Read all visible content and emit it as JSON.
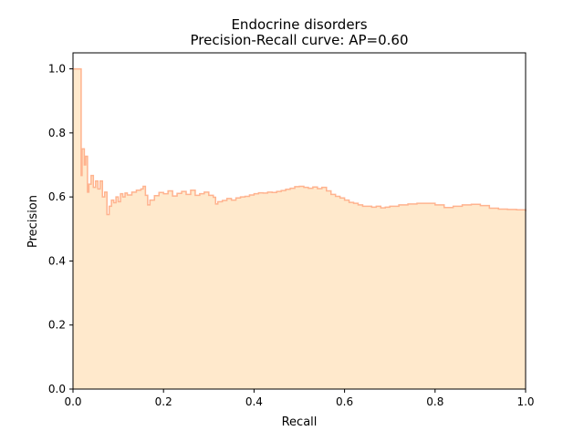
{
  "chart_data": {
    "type": "area",
    "title_line1": "Endocrine disorders",
    "title_line2": "Precision-Recall curve: AP=0.60",
    "xlabel": "Recall",
    "ylabel": "Precision",
    "xlim": [
      0,
      1
    ],
    "ylim": [
      0,
      1.05
    ],
    "grid": false,
    "xticks": [
      {
        "value": 0.0,
        "label": "0.0"
      },
      {
        "value": 0.2,
        "label": "0.2"
      },
      {
        "value": 0.4,
        "label": "0.4"
      },
      {
        "value": 0.6,
        "label": "0.6"
      },
      {
        "value": 0.8,
        "label": "0.8"
      },
      {
        "value": 1.0,
        "label": "1.0"
      }
    ],
    "yticks": [
      {
        "value": 0.0,
        "label": "0.0"
      },
      {
        "value": 0.2,
        "label": "0.2"
      },
      {
        "value": 0.4,
        "label": "0.4"
      },
      {
        "value": 0.6,
        "label": "0.6"
      },
      {
        "value": 0.8,
        "label": "0.8"
      },
      {
        "value": 1.0,
        "label": "1.0"
      }
    ],
    "fill_color": "#ffe9cc",
    "line_color": "#ffb38f",
    "series": [
      {
        "name": "Precision-Recall",
        "step": "post",
        "recall": [
          0.0,
          0.018,
          0.02,
          0.025,
          0.028,
          0.032,
          0.035,
          0.04,
          0.045,
          0.05,
          0.055,
          0.06,
          0.065,
          0.07,
          0.075,
          0.08,
          0.085,
          0.09,
          0.095,
          0.1,
          0.105,
          0.11,
          0.115,
          0.12,
          0.13,
          0.14,
          0.15,
          0.155,
          0.16,
          0.165,
          0.17,
          0.18,
          0.19,
          0.2,
          0.21,
          0.22,
          0.23,
          0.24,
          0.25,
          0.26,
          0.27,
          0.28,
          0.29,
          0.3,
          0.31,
          0.315,
          0.32,
          0.33,
          0.34,
          0.35,
          0.36,
          0.37,
          0.38,
          0.39,
          0.4,
          0.41,
          0.42,
          0.43,
          0.44,
          0.45,
          0.46,
          0.47,
          0.48,
          0.49,
          0.5,
          0.51,
          0.52,
          0.53,
          0.54,
          0.55,
          0.56,
          0.57,
          0.58,
          0.59,
          0.6,
          0.61,
          0.62,
          0.63,
          0.64,
          0.65,
          0.66,
          0.67,
          0.68,
          0.69,
          0.7,
          0.72,
          0.74,
          0.76,
          0.78,
          0.8,
          0.82,
          0.84,
          0.86,
          0.88,
          0.9,
          0.92,
          0.94,
          0.96,
          0.98,
          1.0
        ],
        "precision": [
          1.0,
          0.667,
          0.75,
          0.7,
          0.727,
          0.615,
          0.64,
          0.667,
          0.63,
          0.65,
          0.625,
          0.65,
          0.6,
          0.615,
          0.545,
          0.571,
          0.59,
          0.582,
          0.6,
          0.585,
          0.61,
          0.6,
          0.612,
          0.606,
          0.615,
          0.621,
          0.625,
          0.633,
          0.605,
          0.575,
          0.59,
          0.604,
          0.614,
          0.61,
          0.619,
          0.603,
          0.611,
          0.617,
          0.608,
          0.621,
          0.605,
          0.61,
          0.615,
          0.605,
          0.599,
          0.578,
          0.585,
          0.589,
          0.595,
          0.59,
          0.597,
          0.6,
          0.602,
          0.606,
          0.61,
          0.613,
          0.612,
          0.615,
          0.614,
          0.617,
          0.62,
          0.624,
          0.627,
          0.632,
          0.633,
          0.63,
          0.627,
          0.631,
          0.626,
          0.63,
          0.619,
          0.608,
          0.602,
          0.597,
          0.59,
          0.583,
          0.58,
          0.575,
          0.571,
          0.571,
          0.568,
          0.571,
          0.566,
          0.568,
          0.571,
          0.575,
          0.578,
          0.58,
          0.58,
          0.575,
          0.567,
          0.571,
          0.575,
          0.577,
          0.573,
          0.565,
          0.562,
          0.561,
          0.56,
          0.555
        ]
      }
    ]
  }
}
